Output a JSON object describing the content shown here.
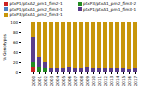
{
  "chart_data": {
    "type": "bar",
    "stacked": true,
    "categories": [
      "2000",
      "2001",
      "2002",
      "2003",
      "2004",
      "2005",
      "2006",
      "2007",
      "2008",
      "2009",
      "2010",
      "2011",
      "2012",
      "2013",
      "2014",
      "2015",
      "2016",
      "2017"
    ],
    "series": [
      {
        "name": "ptxP1/ptxA2_prn1_fim2-1",
        "color": "#cc2222",
        "values": [
          10,
          0,
          0,
          0,
          0,
          0,
          0,
          0,
          0,
          0,
          0,
          0,
          0,
          0,
          0,
          0,
          0,
          0
        ]
      },
      {
        "name": "ptxP3/ptxA1_prn2_fim3-2",
        "color": "#228b22",
        "values": [
          10,
          10,
          8,
          0,
          0,
          0,
          0,
          0,
          0,
          0,
          0,
          0,
          0,
          0,
          0,
          0,
          0,
          0
        ]
      },
      {
        "name": "ptxP1/ptxA1_prn2_fim3-1",
        "color": "#4a7fc1",
        "values": [
          0,
          0,
          0,
          0,
          0,
          0,
          0,
          0,
          0,
          0,
          0,
          0,
          0,
          0,
          0,
          0,
          0,
          0
        ]
      },
      {
        "name": "ptxP1/ptxA1_prn1_fim3-1",
        "color": "#5a3d8a",
        "values": [
          50,
          20,
          12,
          8,
          8,
          8,
          10,
          8,
          8,
          10,
          8,
          8,
          8,
          8,
          8,
          8,
          6,
          8
        ]
      },
      {
        "name": "ptxP3/ptxA1_prn2_fim3-1",
        "color": "#c8960a",
        "values": [
          30,
          70,
          80,
          92,
          92,
          92,
          90,
          92,
          92,
          90,
          92,
          92,
          92,
          92,
          92,
          92,
          94,
          92
        ]
      }
    ],
    "ylabel": "% Genotypes",
    "ylim": [
      0,
      100
    ],
    "yticks": [
      0,
      20,
      40,
      60,
      80,
      100
    ],
    "legend": "top"
  }
}
